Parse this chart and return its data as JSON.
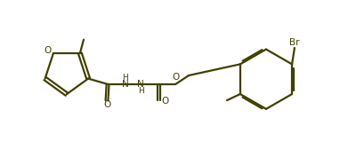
{
  "bg_color": "#ffffff",
  "line_color": "#404000",
  "text_color": "#404000",
  "bond_lw": 1.6,
  "figsize": [
    3.82,
    1.77
  ],
  "dpi": 100,
  "xlim": [
    0,
    10
  ],
  "ylim": [
    0,
    5
  ]
}
